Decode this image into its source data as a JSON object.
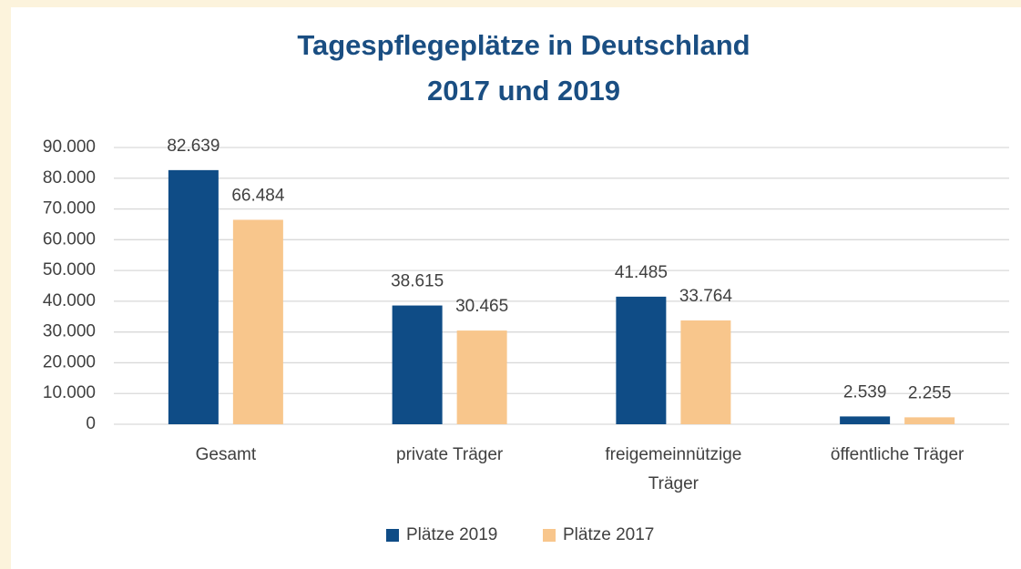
{
  "chart_data": {
    "type": "bar",
    "title": [
      "Tagespflegeplätze in Deutschland",
      "2017 und 2019"
    ],
    "categories": [
      "Gesamt",
      "private Träger",
      "freigemeinnützige Träger",
      "öffentliche Träger"
    ],
    "series": [
      {
        "name": "Plätze 2019",
        "color": "#0f4c86",
        "values": [
          82639,
          38615,
          41485,
          2539
        ],
        "value_labels": [
          "82.639",
          "38.615",
          "41.485",
          "2.539"
        ]
      },
      {
        "name": "Plätze 2017",
        "color": "#f8c68c",
        "values": [
          66484,
          30465,
          33764,
          2255
        ],
        "value_labels": [
          "66.484",
          "30.465",
          "33.764",
          "2.255"
        ]
      }
    ],
    "ylim": [
      0,
      90000
    ],
    "yticks": [
      0,
      {
        "value": 10000,
        "label": "10.000"
      },
      {
        "value": 20000,
        "label": "20.000"
      },
      {
        "value": 30000,
        "label": "30.000"
      },
      {
        "value": 40000,
        "label": "40.000"
      },
      {
        "value": 50000,
        "label": "50.000"
      },
      {
        "value": 60000,
        "label": "60.000"
      },
      {
        "value": 70000,
        "label": "70.000"
      },
      {
        "value": 80000,
        "label": "80.000"
      },
      {
        "value": 90000,
        "label": "90.000"
      }
    ],
    "grid": true,
    "legend": "bottom"
  }
}
